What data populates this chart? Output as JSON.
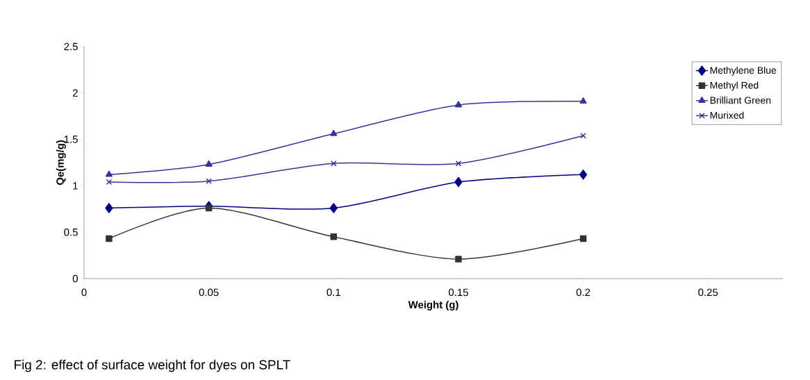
{
  "chart_data": {
    "type": "line",
    "xlabel": "Weight (g)",
    "ylabel": "Qe(mg/g)",
    "x": [
      0.01,
      0.05,
      0.1,
      0.15,
      0.2
    ],
    "series": [
      {
        "name": "Methylene Blue",
        "color": "#000080",
        "marker": "diamond",
        "values": [
          0.76,
          0.78,
          0.76,
          1.04,
          1.12
        ]
      },
      {
        "name": "Methyl Red",
        "color": "#333333",
        "marker": "square",
        "values": [
          0.43,
          0.76,
          0.45,
          0.21,
          0.43
        ]
      },
      {
        "name": "Brilliant Green",
        "color": "#333399",
        "marker": "triangle",
        "values": [
          1.12,
          1.23,
          1.56,
          1.87,
          1.91
        ]
      },
      {
        "name": "Murixed",
        "color": "#333399",
        "marker": "cross",
        "values": [
          1.04,
          1.05,
          1.24,
          1.24,
          1.54
        ]
      }
    ],
    "xlim": [
      0,
      0.28
    ],
    "xticks": [
      0,
      0.05,
      0.1,
      0.15,
      0.2,
      0.25
    ],
    "ylim": [
      0,
      2.5
    ],
    "yticks": [
      0,
      0.5,
      1,
      1.5,
      2,
      2.5
    ],
    "grid": false,
    "legend": "top right",
    "line_style": "solid",
    "annotations": [
      "Fig 2: effect of surface weight for dyes on SPLT"
    ]
  }
}
